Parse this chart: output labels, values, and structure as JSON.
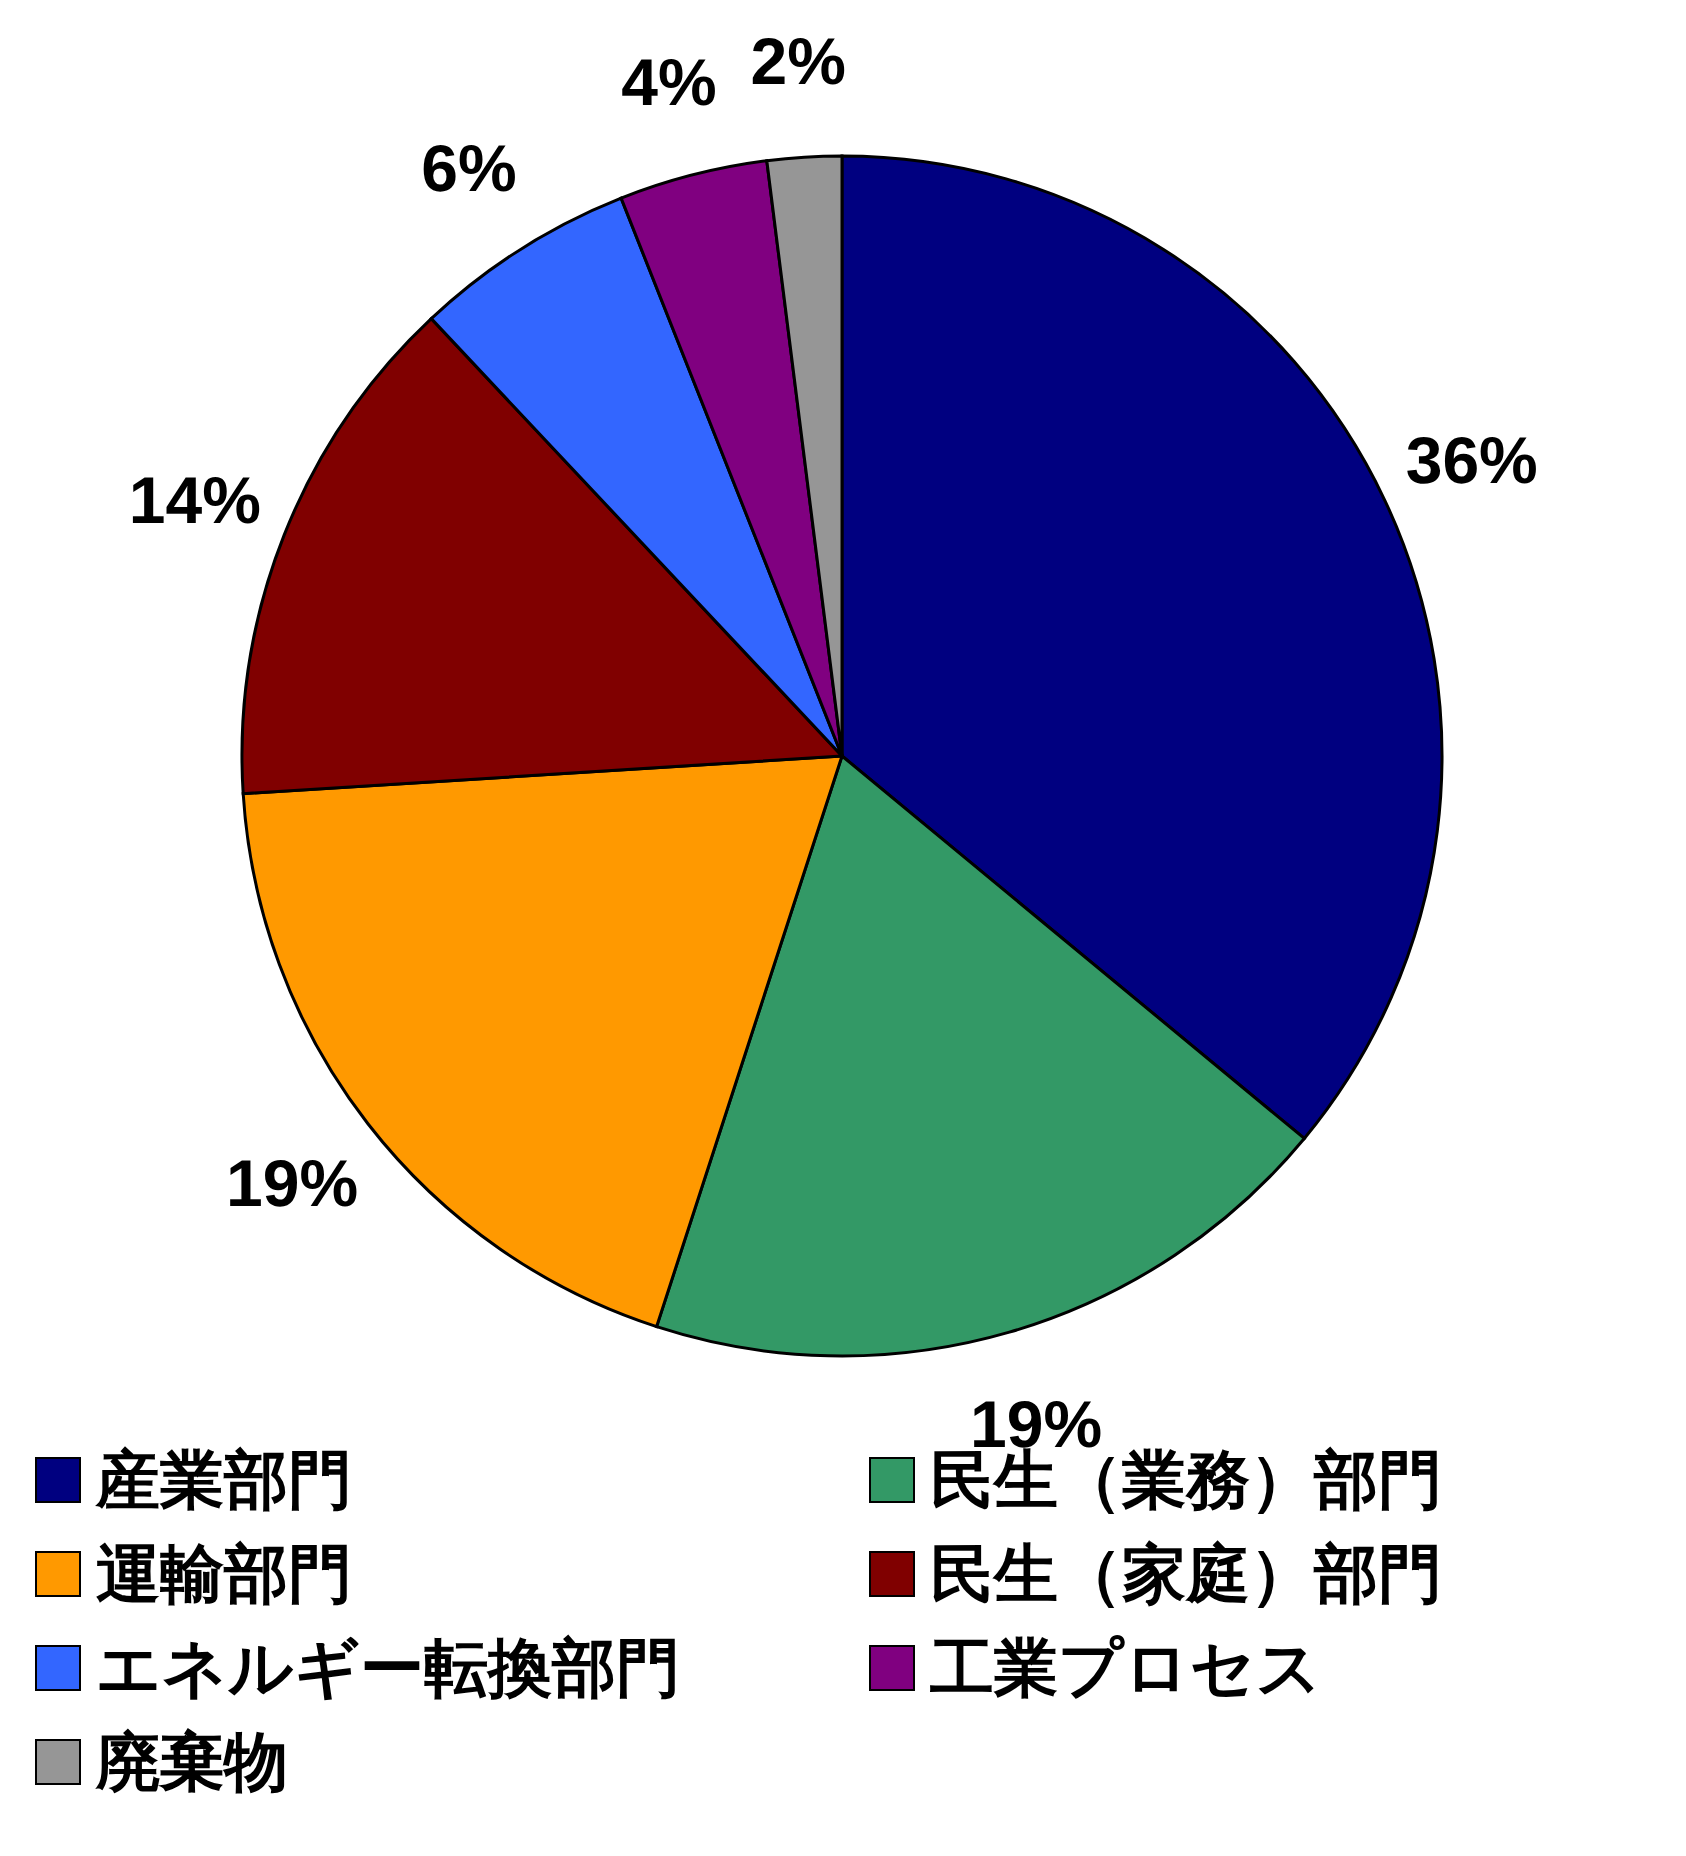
{
  "chart_data": {
    "type": "pie",
    "categories": [
      "産業部門",
      "民生（業務）部門",
      "運輸部門",
      "民生（家庭）部門",
      "エネルギー転換部門",
      "工業プロセス",
      "廃棄物"
    ],
    "values": [
      36,
      19,
      19,
      14,
      6,
      4,
      2
    ],
    "colors": [
      "#000080",
      "#339966",
      "#ff9900",
      "#800000",
      "#3366ff",
      "#800080",
      "#969696"
    ],
    "value_labels": [
      "36%",
      "19%",
      "19%",
      "14%",
      "6%",
      "4%",
      "2%"
    ],
    "legend": "bottom"
  }
}
